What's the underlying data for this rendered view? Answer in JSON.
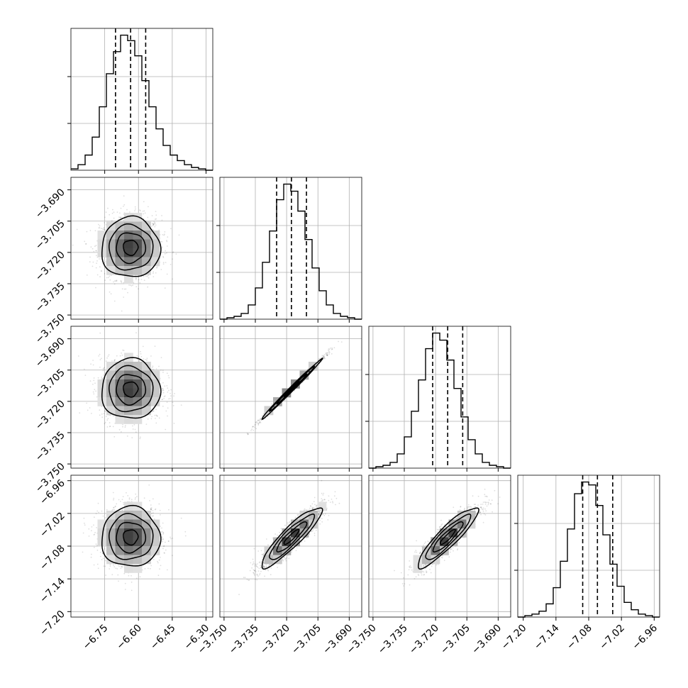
{
  "chart_data": {
    "type": "corner",
    "grid": true,
    "parameters": [
      {
        "range": [
          -6.9,
          -6.27
        ],
        "ticks": [
          "−6.75",
          "−6.60",
          "−6.45",
          "−6.30"
        ],
        "tick_values": [
          -6.75,
          -6.6,
          -6.45,
          -6.3
        ],
        "mean": -6.635,
        "sd": 0.065,
        "quantiles": [
          -6.702,
          -6.635,
          -6.568
        ]
      },
      {
        "range": [
          -3.752,
          -3.684
        ],
        "ticks": [
          "−3.750",
          "−3.735",
          "−3.720",
          "−3.705",
          "−3.690"
        ],
        "tick_values": [
          -3.75,
          -3.735,
          -3.72,
          -3.705,
          -3.69
        ],
        "mean": -3.7177,
        "sd": 0.0072,
        "quantiles": [
          -3.7248,
          -3.7177,
          -3.7105
        ]
      },
      {
        "range": [
          -3.752,
          -3.684
        ],
        "ticks": [
          "−3.750",
          "−3.735",
          "−3.720",
          "−3.705",
          "−3.690"
        ],
        "tick_values": [
          -3.75,
          -3.735,
          -3.72,
          -3.705,
          -3.69
        ],
        "mean": -3.7142,
        "sd": 0.0072,
        "quantiles": [
          -3.7214,
          -3.7142,
          -3.707
        ]
      },
      {
        "range": [
          -7.21,
          -6.95
        ],
        "ticks": [
          "−7.20",
          "−7.14",
          "−7.08",
          "−7.02",
          "−6.96"
        ],
        "tick_values": [
          -7.2,
          -7.14,
          -7.08,
          -7.02,
          -6.96
        ],
        "mean": -7.0635,
        "sd": 0.0275,
        "quantiles": [
          -7.091,
          -7.064,
          -7.036
        ]
      }
    ],
    "histograms": [
      {
        "bins": 20,
        "counts": [
          1,
          4,
          11,
          24,
          46,
          70,
          86,
          98,
          94,
          83,
          65,
          46,
          30,
          18,
          11,
          7,
          4,
          2,
          1,
          0
        ]
      },
      {
        "bins": 20,
        "counts": [
          0,
          1,
          2,
          4,
          10,
          22,
          40,
          62,
          84,
          95,
          90,
          76,
          56,
          36,
          20,
          10,
          4,
          2,
          1,
          0
        ]
      },
      {
        "bins": 20,
        "counts": [
          0,
          1,
          2,
          4,
          10,
          22,
          40,
          62,
          84,
          95,
          90,
          76,
          56,
          36,
          20,
          10,
          4,
          2,
          1,
          0
        ]
      },
      {
        "bins": 20,
        "counts": [
          0,
          1,
          2,
          4,
          9,
          20,
          38,
          60,
          84,
          92,
          90,
          76,
          56,
          36,
          21,
          10,
          5,
          2,
          1,
          0
        ]
      }
    ],
    "correlations": {
      "1-0": 0.0,
      "2-0": 0.0,
      "2-1": 0.995,
      "3-0": 0.0,
      "3-1": 0.9,
      "3-2": 0.9
    }
  }
}
